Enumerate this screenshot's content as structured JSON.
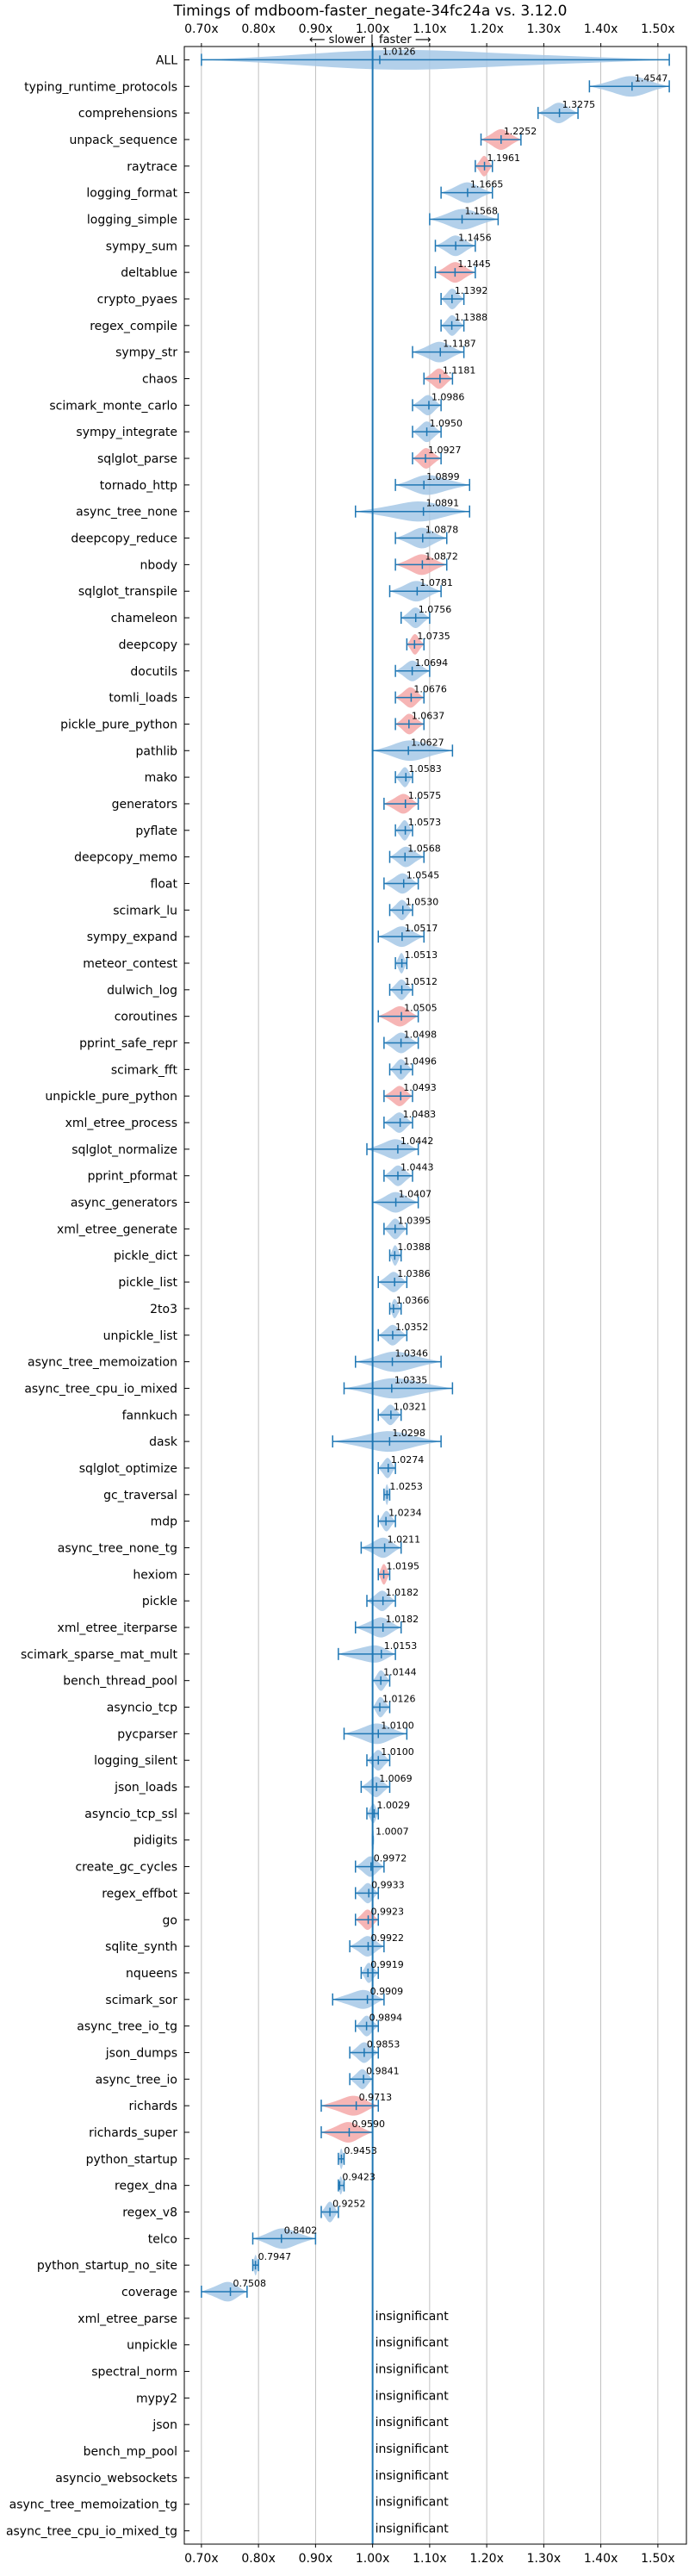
{
  "chart_data": {
    "type": "violin",
    "title": "Timings of mdboom-faster_negate-34fc24a vs. 3.12.0",
    "direction_labels": {
      "slower": "⟵ slower",
      "separator": "|",
      "faster": "faster ⟶"
    },
    "xlim": [
      0.67,
      1.55
    ],
    "xticks": [
      0.7,
      0.8,
      0.9,
      1.0,
      1.1,
      1.2,
      1.3,
      1.4,
      1.5
    ],
    "xtick_labels": [
      "0.70x",
      "0.80x",
      "0.90x",
      "1.00x",
      "1.10x",
      "1.20x",
      "1.30x",
      "1.40x",
      "1.50x"
    ],
    "reference_x": 1.0,
    "insignificant_text": "insignificant",
    "colors": {
      "blue": "#1f77b4",
      "violin_blue": "#a6c8e6",
      "violin_red": "#f4a8a8",
      "grid": "#b0b0b0"
    },
    "benchmarks": [
      {
        "name": "ALL",
        "value": 1.0126,
        "label": "1.0126",
        "lo": 0.7,
        "hi": 1.52,
        "color": "blue"
      },
      {
        "name": "typing_runtime_protocols",
        "value": 1.4547,
        "label": "1.4547",
        "lo": 1.38,
        "hi": 1.52,
        "color": "blue"
      },
      {
        "name": "comprehensions",
        "value": 1.3275,
        "label": "1.3275",
        "lo": 1.29,
        "hi": 1.36,
        "color": "blue"
      },
      {
        "name": "unpack_sequence",
        "value": 1.2252,
        "label": "1.2252",
        "lo": 1.19,
        "hi": 1.26,
        "color": "red"
      },
      {
        "name": "raytrace",
        "value": 1.1961,
        "label": "1.1961",
        "lo": 1.18,
        "hi": 1.21,
        "color": "red"
      },
      {
        "name": "logging_format",
        "value": 1.1665,
        "label": "1.1665",
        "lo": 1.12,
        "hi": 1.21,
        "color": "blue"
      },
      {
        "name": "logging_simple",
        "value": 1.1568,
        "label": "1.1568",
        "lo": 1.1,
        "hi": 1.22,
        "color": "blue"
      },
      {
        "name": "sympy_sum",
        "value": 1.1456,
        "label": "1.1456",
        "lo": 1.11,
        "hi": 1.18,
        "color": "blue"
      },
      {
        "name": "deltablue",
        "value": 1.1445,
        "label": "1.1445",
        "lo": 1.11,
        "hi": 1.18,
        "color": "red"
      },
      {
        "name": "crypto_pyaes",
        "value": 1.1392,
        "label": "1.1392",
        "lo": 1.12,
        "hi": 1.16,
        "color": "blue"
      },
      {
        "name": "regex_compile",
        "value": 1.1388,
        "label": "1.1388",
        "lo": 1.12,
        "hi": 1.16,
        "color": "blue"
      },
      {
        "name": "sympy_str",
        "value": 1.1187,
        "label": "1.1187",
        "lo": 1.07,
        "hi": 1.16,
        "color": "blue"
      },
      {
        "name": "chaos",
        "value": 1.1181,
        "label": "1.1181",
        "lo": 1.09,
        "hi": 1.14,
        "color": "red"
      },
      {
        "name": "scimark_monte_carlo",
        "value": 1.0986,
        "label": "1.0986",
        "lo": 1.07,
        "hi": 1.12,
        "color": "blue"
      },
      {
        "name": "sympy_integrate",
        "value": 1.095,
        "label": "1.0950",
        "lo": 1.07,
        "hi": 1.12,
        "color": "blue"
      },
      {
        "name": "sqlglot_parse",
        "value": 1.0927,
        "label": "1.0927",
        "lo": 1.07,
        "hi": 1.12,
        "color": "red"
      },
      {
        "name": "tornado_http",
        "value": 1.0899,
        "label": "1.0899",
        "lo": 1.04,
        "hi": 1.17,
        "color": "blue"
      },
      {
        "name": "async_tree_none",
        "value": 1.0891,
        "label": "1.0891",
        "lo": 0.97,
        "hi": 1.17,
        "color": "blue"
      },
      {
        "name": "deepcopy_reduce",
        "value": 1.0878,
        "label": "1.0878",
        "lo": 1.04,
        "hi": 1.13,
        "color": "blue"
      },
      {
        "name": "nbody",
        "value": 1.0872,
        "label": "1.0872",
        "lo": 1.04,
        "hi": 1.13,
        "color": "red"
      },
      {
        "name": "sqlglot_transpile",
        "value": 1.0781,
        "label": "1.0781",
        "lo": 1.03,
        "hi": 1.12,
        "color": "blue"
      },
      {
        "name": "chameleon",
        "value": 1.0756,
        "label": "1.0756",
        "lo": 1.05,
        "hi": 1.1,
        "color": "blue"
      },
      {
        "name": "deepcopy",
        "value": 1.0735,
        "label": "1.0735",
        "lo": 1.06,
        "hi": 1.09,
        "color": "red"
      },
      {
        "name": "docutils",
        "value": 1.0694,
        "label": "1.0694",
        "lo": 1.04,
        "hi": 1.1,
        "color": "blue"
      },
      {
        "name": "tomli_loads",
        "value": 1.0676,
        "label": "1.0676",
        "lo": 1.04,
        "hi": 1.09,
        "color": "red"
      },
      {
        "name": "pickle_pure_python",
        "value": 1.0637,
        "label": "1.0637",
        "lo": 1.04,
        "hi": 1.09,
        "color": "red"
      },
      {
        "name": "pathlib",
        "value": 1.0627,
        "label": "1.0627",
        "lo": 1.0,
        "hi": 1.14,
        "color": "blue"
      },
      {
        "name": "mako",
        "value": 1.0583,
        "label": "1.0583",
        "lo": 1.04,
        "hi": 1.07,
        "color": "blue"
      },
      {
        "name": "generators",
        "value": 1.0575,
        "label": "1.0575",
        "lo": 1.02,
        "hi": 1.08,
        "color": "red"
      },
      {
        "name": "pyflate",
        "value": 1.0573,
        "label": "1.0573",
        "lo": 1.04,
        "hi": 1.07,
        "color": "blue"
      },
      {
        "name": "deepcopy_memo",
        "value": 1.0568,
        "label": "1.0568",
        "lo": 1.03,
        "hi": 1.09,
        "color": "blue"
      },
      {
        "name": "float",
        "value": 1.0545,
        "label": "1.0545",
        "lo": 1.02,
        "hi": 1.08,
        "color": "blue"
      },
      {
        "name": "scimark_lu",
        "value": 1.053,
        "label": "1.0530",
        "lo": 1.03,
        "hi": 1.07,
        "color": "blue"
      },
      {
        "name": "sympy_expand",
        "value": 1.0517,
        "label": "1.0517",
        "lo": 1.01,
        "hi": 1.09,
        "color": "blue"
      },
      {
        "name": "meteor_contest",
        "value": 1.0513,
        "label": "1.0513",
        "lo": 1.04,
        "hi": 1.06,
        "color": "blue"
      },
      {
        "name": "dulwich_log",
        "value": 1.0512,
        "label": "1.0512",
        "lo": 1.03,
        "hi": 1.07,
        "color": "blue"
      },
      {
        "name": "coroutines",
        "value": 1.0505,
        "label": "1.0505",
        "lo": 1.01,
        "hi": 1.08,
        "color": "red"
      },
      {
        "name": "pprint_safe_repr",
        "value": 1.0498,
        "label": "1.0498",
        "lo": 1.02,
        "hi": 1.08,
        "color": "blue"
      },
      {
        "name": "scimark_fft",
        "value": 1.0496,
        "label": "1.0496",
        "lo": 1.03,
        "hi": 1.07,
        "color": "blue"
      },
      {
        "name": "unpickle_pure_python",
        "value": 1.0493,
        "label": "1.0493",
        "lo": 1.02,
        "hi": 1.07,
        "color": "red"
      },
      {
        "name": "xml_etree_process",
        "value": 1.0483,
        "label": "1.0483",
        "lo": 1.02,
        "hi": 1.07,
        "color": "blue"
      },
      {
        "name": "sqlglot_normalize",
        "value": 1.0442,
        "label": "1.0442",
        "lo": 0.99,
        "hi": 1.08,
        "color": "blue"
      },
      {
        "name": "pprint_pformat",
        "value": 1.0443,
        "label": "1.0443",
        "lo": 1.02,
        "hi": 1.07,
        "color": "blue"
      },
      {
        "name": "async_generators",
        "value": 1.0407,
        "label": "1.0407",
        "lo": 1.0,
        "hi": 1.08,
        "color": "blue"
      },
      {
        "name": "xml_etree_generate",
        "value": 1.0395,
        "label": "1.0395",
        "lo": 1.02,
        "hi": 1.06,
        "color": "blue"
      },
      {
        "name": "pickle_dict",
        "value": 1.0388,
        "label": "1.0388",
        "lo": 1.03,
        "hi": 1.05,
        "color": "blue"
      },
      {
        "name": "pickle_list",
        "value": 1.0386,
        "label": "1.0386",
        "lo": 1.01,
        "hi": 1.06,
        "color": "blue"
      },
      {
        "name": "2to3",
        "value": 1.0366,
        "label": "1.0366",
        "lo": 1.03,
        "hi": 1.05,
        "color": "blue"
      },
      {
        "name": "unpickle_list",
        "value": 1.0352,
        "label": "1.0352",
        "lo": 1.01,
        "hi": 1.06,
        "color": "blue"
      },
      {
        "name": "async_tree_memoization",
        "value": 1.0346,
        "label": "1.0346",
        "lo": 0.97,
        "hi": 1.12,
        "color": "blue"
      },
      {
        "name": "async_tree_cpu_io_mixed",
        "value": 1.0335,
        "label": "1.0335",
        "lo": 0.95,
        "hi": 1.14,
        "color": "blue"
      },
      {
        "name": "fannkuch",
        "value": 1.0321,
        "label": "1.0321",
        "lo": 1.01,
        "hi": 1.05,
        "color": "blue"
      },
      {
        "name": "dask",
        "value": 1.0298,
        "label": "1.0298",
        "lo": 0.93,
        "hi": 1.12,
        "color": "blue"
      },
      {
        "name": "sqlglot_optimize",
        "value": 1.0274,
        "label": "1.0274",
        "lo": 1.01,
        "hi": 1.04,
        "color": "blue"
      },
      {
        "name": "gc_traversal",
        "value": 1.0253,
        "label": "1.0253",
        "lo": 1.02,
        "hi": 1.03,
        "color": "blue"
      },
      {
        "name": "mdp",
        "value": 1.0234,
        "label": "1.0234",
        "lo": 1.01,
        "hi": 1.04,
        "color": "blue"
      },
      {
        "name": "async_tree_none_tg",
        "value": 1.0211,
        "label": "1.0211",
        "lo": 0.98,
        "hi": 1.05,
        "color": "blue"
      },
      {
        "name": "hexiom",
        "value": 1.0195,
        "label": "1.0195",
        "lo": 1.01,
        "hi": 1.03,
        "color": "red"
      },
      {
        "name": "pickle",
        "value": 1.0182,
        "label": "1.0182",
        "lo": 0.99,
        "hi": 1.04,
        "color": "blue"
      },
      {
        "name": "xml_etree_iterparse",
        "value": 1.0182,
        "label": "1.0182",
        "lo": 0.97,
        "hi": 1.05,
        "color": "blue"
      },
      {
        "name": "scimark_sparse_mat_mult",
        "value": 1.0153,
        "label": "1.0153",
        "lo": 0.94,
        "hi": 1.04,
        "color": "blue"
      },
      {
        "name": "bench_thread_pool",
        "value": 1.0144,
        "label": "1.0144",
        "lo": 1.0,
        "hi": 1.03,
        "color": "blue"
      },
      {
        "name": "asyncio_tcp",
        "value": 1.0126,
        "label": "1.0126",
        "lo": 1.0,
        "hi": 1.03,
        "color": "blue"
      },
      {
        "name": "pycparser",
        "value": 1.01,
        "label": "1.0100",
        "lo": 0.95,
        "hi": 1.06,
        "color": "blue"
      },
      {
        "name": "logging_silent",
        "value": 1.01,
        "label": "1.0100",
        "lo": 0.99,
        "hi": 1.03,
        "color": "blue"
      },
      {
        "name": "json_loads",
        "value": 1.0069,
        "label": "1.0069",
        "lo": 0.98,
        "hi": 1.03,
        "color": "blue"
      },
      {
        "name": "asyncio_tcp_ssl",
        "value": 1.0029,
        "label": "1.0029",
        "lo": 0.99,
        "hi": 1.01,
        "color": "blue"
      },
      {
        "name": "pidigits",
        "value": 1.0007,
        "label": "1.0007",
        "lo": 1.0,
        "hi": 1.0,
        "color": "blue"
      },
      {
        "name": "create_gc_cycles",
        "value": 0.9972,
        "label": "0.9972",
        "lo": 0.97,
        "hi": 1.02,
        "color": "blue"
      },
      {
        "name": "regex_effbot",
        "value": 0.9933,
        "label": "0.9933",
        "lo": 0.97,
        "hi": 1.01,
        "color": "blue"
      },
      {
        "name": "go",
        "value": 0.9923,
        "label": "0.9923",
        "lo": 0.97,
        "hi": 1.01,
        "color": "red"
      },
      {
        "name": "sqlite_synth",
        "value": 0.9922,
        "label": "0.9922",
        "lo": 0.96,
        "hi": 1.02,
        "color": "blue"
      },
      {
        "name": "nqueens",
        "value": 0.9919,
        "label": "0.9919",
        "lo": 0.98,
        "hi": 1.01,
        "color": "blue"
      },
      {
        "name": "scimark_sor",
        "value": 0.9909,
        "label": "0.9909",
        "lo": 0.93,
        "hi": 1.02,
        "color": "blue"
      },
      {
        "name": "async_tree_io_tg",
        "value": 0.9894,
        "label": "0.9894",
        "lo": 0.97,
        "hi": 1.01,
        "color": "blue"
      },
      {
        "name": "json_dumps",
        "value": 0.9853,
        "label": "0.9853",
        "lo": 0.96,
        "hi": 1.01,
        "color": "blue"
      },
      {
        "name": "async_tree_io",
        "value": 0.9841,
        "label": "0.9841",
        "lo": 0.96,
        "hi": 1.0,
        "color": "blue"
      },
      {
        "name": "richards",
        "value": 0.9713,
        "label": "0.9713",
        "lo": 0.91,
        "hi": 1.01,
        "color": "red"
      },
      {
        "name": "richards_super",
        "value": 0.959,
        "label": "0.9590",
        "lo": 0.91,
        "hi": 1.0,
        "color": "red"
      },
      {
        "name": "python_startup",
        "value": 0.9453,
        "label": "0.9453",
        "lo": 0.94,
        "hi": 0.95,
        "color": "blue"
      },
      {
        "name": "regex_dna",
        "value": 0.9423,
        "label": "0.9423",
        "lo": 0.94,
        "hi": 0.95,
        "color": "blue"
      },
      {
        "name": "regex_v8",
        "value": 0.9252,
        "label": "0.9252",
        "lo": 0.91,
        "hi": 0.94,
        "color": "blue"
      },
      {
        "name": "telco",
        "value": 0.8402,
        "label": "0.8402",
        "lo": 0.79,
        "hi": 0.9,
        "color": "blue"
      },
      {
        "name": "python_startup_no_site",
        "value": 0.7947,
        "label": "0.7947",
        "lo": 0.79,
        "hi": 0.8,
        "color": "blue"
      },
      {
        "name": "coverage",
        "value": 0.7508,
        "label": "0.7508",
        "lo": 0.7,
        "hi": 0.78,
        "color": "blue"
      },
      {
        "name": "xml_etree_parse",
        "insignificant": true
      },
      {
        "name": "unpickle",
        "insignificant": true
      },
      {
        "name": "spectral_norm",
        "insignificant": true
      },
      {
        "name": "mypy2",
        "insignificant": true
      },
      {
        "name": "json",
        "insignificant": true
      },
      {
        "name": "bench_mp_pool",
        "insignificant": true
      },
      {
        "name": "asyncio_websockets",
        "insignificant": true
      },
      {
        "name": "async_tree_memoization_tg",
        "insignificant": true
      },
      {
        "name": "async_tree_cpu_io_mixed_tg",
        "insignificant": true
      }
    ]
  }
}
